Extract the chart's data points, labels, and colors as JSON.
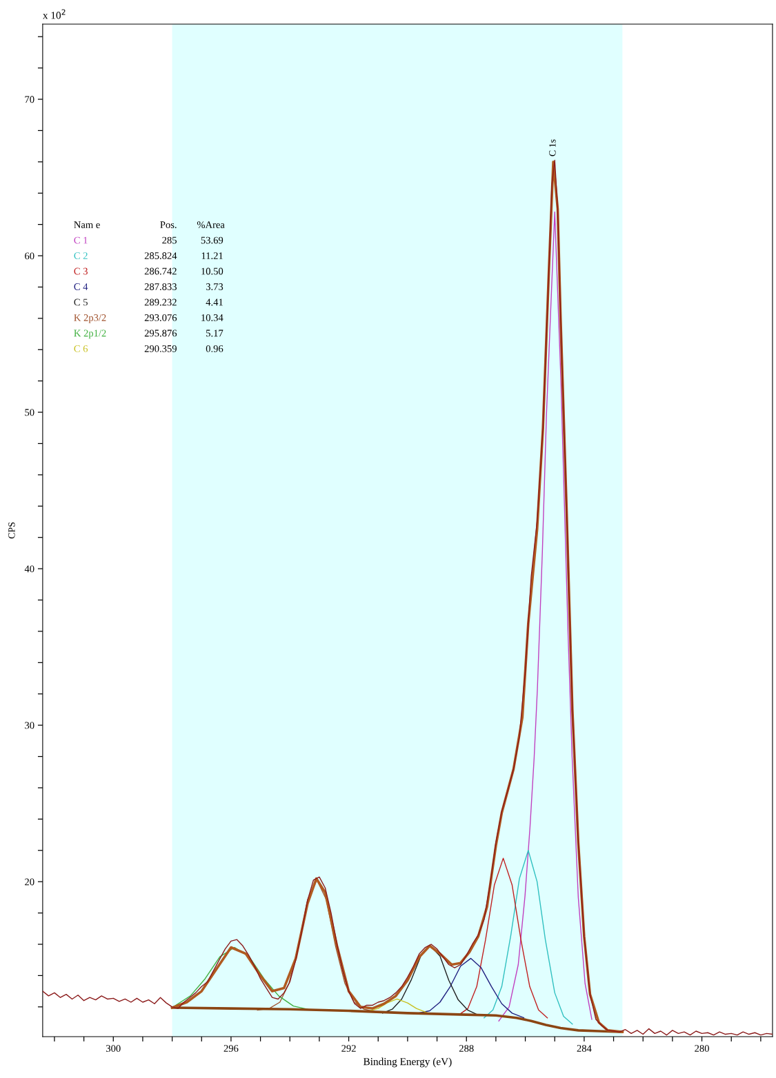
{
  "chart_data": {
    "type": "line",
    "xlabel": "Binding Energy (eV)",
    "ylabel": "CPS",
    "xlim": [
      302.4,
      277.6
    ],
    "ylim": [
      10.1,
      74.8
    ],
    "xticks": [
      {
        "value": 302,
        "label": null
      },
      {
        "value": 301,
        "label": null
      },
      300,
      {
        "value": 299,
        "label": null
      },
      {
        "value": 298,
        "label": null
      },
      {
        "value": 297,
        "label": null
      },
      296,
      {
        "value": 295,
        "label": null
      },
      {
        "value": 294,
        "label": null
      },
      {
        "value": 293,
        "label": null
      },
      292,
      {
        "value": 291,
        "label": null
      },
      {
        "value": 290,
        "label": null
      },
      {
        "value": 289,
        "label": null
      },
      288,
      {
        "value": 287,
        "label": null
      },
      {
        "value": 286,
        "label": null
      },
      {
        "value": 285,
        "label": null
      },
      284,
      {
        "value": 283,
        "label": null
      },
      {
        "value": 282,
        "label": null
      },
      {
        "value": 281,
        "label": null
      },
      280,
      {
        "value": 279,
        "label": null
      },
      {
        "value": 278,
        "label": null
      }
    ],
    "yticks": [
      {
        "value": 12,
        "label": null
      },
      {
        "value": 14,
        "label": null
      },
      {
        "value": 16,
        "label": null
      },
      {
        "value": 18,
        "label": null
      },
      20,
      {
        "value": 22,
        "label": null
      },
      {
        "value": 24,
        "label": null
      },
      {
        "value": 26,
        "label": null
      },
      {
        "value": 28,
        "label": null
      },
      30,
      {
        "value": 32,
        "label": null
      },
      {
        "value": 34,
        "label": null
      },
      {
        "value": 36,
        "label": null
      },
      {
        "value": 38,
        "label": null
      },
      40,
      {
        "value": 42,
        "label": null
      },
      {
        "value": 44,
        "label": null
      },
      {
        "value": 46,
        "label": null
      },
      {
        "value": 48,
        "label": null
      },
      50,
      {
        "value": 52,
        "label": null
      },
      {
        "value": 54,
        "label": null
      },
      {
        "value": 56,
        "label": null
      },
      {
        "value": 58,
        "label": null
      },
      60,
      {
        "value": 62,
        "label": null
      },
      {
        "value": 64,
        "label": null
      },
      {
        "value": 66,
        "label": null
      },
      {
        "value": 68,
        "label": null
      },
      70,
      {
        "value": 72,
        "label": null
      },
      {
        "value": 74,
        "label": null
      }
    ],
    "grid": false,
    "legend": "top left",
    "marker": "none",
    "line_style": "solid",
    "bands": [
      {
        "axis": "x",
        "from": 298.0,
        "to": 282.7,
        "color": "#e0ffff"
      }
    ],
    "annotations": [
      "x 10$^{2}$",
      {
        "text": "C 1s",
        "x": 285.05,
        "y": 66.1
      },
      "Nam e",
      "Pos.",
      "%Area",
      "285",
      "53.69",
      "285.824",
      "11.21",
      "286.742",
      "10.50",
      "287.833",
      "3.73",
      "289.232",
      "4.41",
      "293.076",
      "10.34",
      "295.876",
      "5.17",
      "290.359",
      "0.96"
    ],
    "series": [
      {
        "name": "C 1",
        "color": "#c040c0",
        "x": [
          286.9,
          286.55,
          286.24,
          286.01,
          285.84,
          285.7,
          285.59,
          285.42,
          285.28,
          285.09,
          285.0,
          284.79,
          284.67,
          284.55,
          284.41,
          284.2,
          283.97,
          283.74
        ],
        "values": [
          11.1,
          12.0,
          14.7,
          19.1,
          23.5,
          27.9,
          32.3,
          41.1,
          49.9,
          58.7,
          62.8,
          52.0,
          44.0,
          36.0,
          28.0,
          19.0,
          13.5,
          11.2
        ]
      },
      {
        "name": "C 2",
        "color": "#30c0c0",
        "x": [
          287.4,
          287.1,
          286.8,
          286.49,
          286.2,
          285.9,
          285.6,
          285.32,
          285.0,
          284.7,
          284.4
        ],
        "values": [
          11.3,
          11.8,
          13.3,
          16.6,
          20.2,
          22.0,
          20.0,
          16.3,
          12.9,
          11.4,
          10.9
        ]
      },
      {
        "name": "C 3",
        "color": "#c02020",
        "x": [
          288.25,
          287.95,
          287.65,
          287.35,
          287.05,
          286.75,
          286.45,
          286.15,
          285.85,
          285.55,
          285.25
        ],
        "values": [
          11.5,
          11.9,
          13.3,
          16.3,
          19.8,
          21.5,
          19.8,
          16.3,
          13.3,
          11.8,
          11.3
        ]
      },
      {
        "name": "C 4",
        "color": "#202080",
        "x": [
          289.65,
          289.25,
          288.9,
          288.55,
          288.2,
          287.85,
          287.5,
          287.15,
          286.8,
          286.45,
          286.05
        ],
        "values": [
          11.6,
          11.75,
          12.3,
          13.3,
          14.6,
          15.1,
          14.5,
          13.3,
          12.2,
          11.6,
          11.3
        ]
      },
      {
        "name": "C 5",
        "color": "#202020",
        "x": [
          290.85,
          290.52,
          290.2,
          289.87,
          289.55,
          289.23,
          288.9,
          288.6,
          288.28,
          287.96,
          287.63
        ],
        "values": [
          11.6,
          11.85,
          12.5,
          13.75,
          15.25,
          15.9,
          15.25,
          13.7,
          12.45,
          11.8,
          11.5
        ]
      },
      {
        "name": "K 2p3/2",
        "color": "#a0522d",
        "x": [
          295.1,
          294.7,
          294.34,
          294.03,
          293.71,
          293.4,
          293.08,
          292.76,
          292.45,
          292.13,
          291.82,
          291.48,
          291.1
        ],
        "values": [
          11.8,
          11.9,
          12.3,
          13.5,
          15.9,
          18.85,
          20.1,
          18.85,
          15.9,
          13.5,
          12.3,
          11.85,
          11.7
        ]
      },
      {
        "name": "K 2p1/2",
        "color": "#40b040",
        "x": [
          298.0,
          297.88,
          297.38,
          296.88,
          296.38,
          295.88,
          295.38,
          294.88,
          294.38,
          293.88,
          293.4
        ],
        "values": [
          11.95,
          12.1,
          12.7,
          13.8,
          15.2,
          15.8,
          15.2,
          13.8,
          12.7,
          12.05,
          11.85
        ]
      },
      {
        "name": "C 6",
        "color": "#c8c020",
        "x": [
          291.4,
          291.0,
          290.7,
          290.36,
          290.0,
          289.7,
          289.3
        ],
        "values": [
          11.7,
          11.9,
          12.25,
          12.5,
          12.25,
          11.9,
          11.6
        ]
      },
      {
        "color": "#8b4513",
        "x": [
          298.0,
          296,
          294,
          292,
          290,
          288,
          287,
          286.3,
          285.8,
          285.3,
          284.8,
          284.2,
          283.5,
          282.7
        ],
        "values": [
          11.95,
          11.9,
          11.85,
          11.75,
          11.6,
          11.5,
          11.45,
          11.3,
          11.1,
          10.85,
          10.65,
          10.5,
          10.45,
          10.4
        ]
      },
      {
        "color": "#b05a20",
        "x": [
          298.0,
          297.5,
          297.0,
          296.5,
          296.0,
          295.5,
          295.0,
          294.6,
          294.2,
          293.8,
          293.4,
          293.1,
          292.8,
          292.4,
          292.0,
          291.6,
          291.2,
          290.8,
          290.4,
          290.0,
          289.6,
          289.25,
          288.9,
          288.5,
          288.2,
          287.9,
          287.6,
          287.3,
          287.0,
          286.8,
          286.4,
          286.1,
          285.9,
          285.6,
          285.4,
          285.2,
          285.05,
          284.9,
          284.8,
          284.6,
          284.4,
          284.2,
          284.0,
          283.8,
          283.5,
          283.2,
          282.7
        ],
        "values": [
          11.95,
          12.3,
          13.0,
          14.4,
          15.8,
          15.4,
          14.0,
          13.0,
          13.2,
          15.1,
          18.6,
          20.2,
          19.3,
          15.9,
          13.0,
          12.0,
          11.9,
          12.2,
          12.7,
          13.7,
          15.2,
          15.9,
          15.4,
          14.7,
          14.8,
          15.5,
          16.5,
          18.4,
          22.3,
          24.4,
          27.2,
          30.5,
          36.5,
          42.5,
          49.0,
          59.0,
          66.0,
          63.0,
          56.0,
          44.0,
          31.0,
          22.5,
          16.5,
          12.8,
          11.0,
          10.5,
          10.4
        ]
      },
      {
        "color": "#8b1a1a",
        "x": [
          302.4,
          302.2,
          302.0,
          301.8,
          301.6,
          301.4,
          301.2,
          301.0,
          300.8,
          300.6,
          300.4,
          300.2,
          300.0,
          299.8,
          299.6,
          299.4,
          299.2,
          299.0,
          298.8,
          298.6,
          298.4,
          298.2,
          298.0,
          297.8,
          297.6,
          297.4,
          297.2,
          297.0,
          296.8,
          296.6,
          296.4,
          296.2,
          296.0,
          295.8,
          295.6,
          295.4,
          295.2,
          295.0,
          294.8,
          294.6,
          294.4,
          294.2,
          294.0,
          293.8,
          293.6,
          293.4,
          293.2,
          293.0,
          292.8,
          292.6,
          292.4,
          292.2,
          292.0,
          291.8,
          291.6,
          291.4,
          291.2,
          291.0,
          290.8,
          290.6,
          290.4,
          290.2,
          290.0,
          289.8,
          289.6,
          289.4,
          289.2,
          289.0,
          288.8,
          288.6,
          288.4,
          288.2,
          288.0,
          287.8,
          287.6,
          287.4,
          287.2,
          287.0,
          286.8,
          286.6,
          286.4,
          286.2,
          286.0,
          285.8,
          285.6,
          285.4,
          285.2,
          285.1,
          285.0,
          284.9,
          284.8,
          284.6,
          284.4,
          284.2,
          284.0,
          283.8,
          283.6,
          283.4,
          283.2,
          283.0,
          282.8,
          282.6,
          282.4,
          282.2,
          282.0,
          281.8,
          281.6,
          281.4,
          281.2,
          281.0,
          280.8,
          280.6,
          280.4,
          280.2,
          280.0,
          279.8,
          279.6,
          279.4,
          279.2,
          279.0,
          278.8,
          278.6,
          278.4,
          278.2,
          278.0,
          277.8,
          277.6
        ],
        "values": [
          13.0,
          12.7,
          12.9,
          12.6,
          12.8,
          12.5,
          12.75,
          12.4,
          12.6,
          12.45,
          12.7,
          12.5,
          12.55,
          12.35,
          12.5,
          12.3,
          12.55,
          12.3,
          12.45,
          12.2,
          12.6,
          12.25,
          12.0,
          11.9,
          12.3,
          12.6,
          12.9,
          13.3,
          13.6,
          14.3,
          15.0,
          15.7,
          16.2,
          16.3,
          15.9,
          15.3,
          14.6,
          13.8,
          13.2,
          12.6,
          12.5,
          12.9,
          13.6,
          15.0,
          16.8,
          18.8,
          20.1,
          20.3,
          19.6,
          18.0,
          16.0,
          14.3,
          13.0,
          12.2,
          11.9,
          12.1,
          12.1,
          12.3,
          12.4,
          12.6,
          12.9,
          13.3,
          13.9,
          14.6,
          15.4,
          15.8,
          16.0,
          15.7,
          15.2,
          14.7,
          14.5,
          14.7,
          15.3,
          16.0,
          16.6,
          17.6,
          19.8,
          22.5,
          24.5,
          25.8,
          27.2,
          29.3,
          33.5,
          39.5,
          43.0,
          49.0,
          59.0,
          64.5,
          66.1,
          63.0,
          56.0,
          44.0,
          31.0,
          22.5,
          16.5,
          12.8,
          11.2,
          10.8,
          10.5,
          10.45,
          10.4,
          10.55,
          10.3,
          10.5,
          10.25,
          10.6,
          10.3,
          10.45,
          10.2,
          10.5,
          10.3,
          10.4,
          10.2,
          10.45,
          10.3,
          10.35,
          10.2,
          10.4,
          10.25,
          10.3,
          10.2,
          10.4,
          10.25,
          10.35,
          10.2,
          10.3,
          10.25
        ]
      }
    ]
  }
}
